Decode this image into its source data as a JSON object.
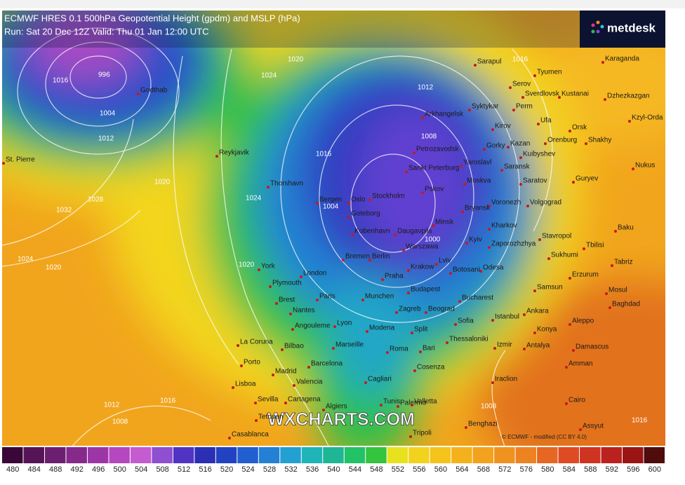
{
  "header": {
    "title": "ECMWF HRES 0.1 500hPa Geopotential Height (gpdm) and MSLP (hPa)",
    "run": "Run: Sat 20 Dec 12Z Valid: Thu 01 Jan 12:00 UTC"
  },
  "logo": "metdesk",
  "watermark": "WXCHARTS.COM",
  "credit": "© ECMWF - modified (CC BY 4.0)",
  "cities": [
    "Godthab",
    "Reykjavik",
    "St. Pierre",
    "Thorshavn",
    "Bergen",
    "Oslo",
    "Stockholm",
    "Goteborg",
    "Kobenhavn",
    "Daugavpils",
    "Petrozavodsk",
    "Arkhangelsk",
    "Sankt Peterburg",
    "Pskov",
    "Moskva",
    "Yaroslavl",
    "Kirov",
    "Perm",
    "Syktykar",
    "Serov",
    "Sarapul",
    "Tyumen",
    "Sverdlovsk",
    "Kustanai",
    "Karaganda",
    "Dzhezkazgan",
    "Kzyl-Orda",
    "Ufa",
    "Orsk",
    "Orenburg",
    "Shakhy",
    "Kazan",
    "Kuibyshev",
    "Saransk",
    "Saratov",
    "Gorky",
    "Nukus",
    "Guryev",
    "Volgograd",
    "Voronezh",
    "Bryansk",
    "Minsk",
    "Kharkov",
    "Kyiv",
    "Zaporozhzhya",
    "Stavropol",
    "Tbilisi",
    "Baku",
    "Sukhumi",
    "Tabriz",
    "Odesa",
    "Lviv",
    "Krakow",
    "Warszawa",
    "Berlin",
    "Bremen",
    "London",
    "York",
    "Plymouth",
    "Paris",
    "Brest",
    "Nantes",
    "Praha",
    "Munchen",
    "Budapest",
    "Bucharest",
    "Botosani",
    "Zagreb",
    "Beograd",
    "Sofia",
    "Istanbul",
    "Ankara",
    "Samsun",
    "Erzurum",
    "Mosul",
    "Baghdad",
    "Aleppo",
    "Konya",
    "Izmir",
    "Antalya",
    "Damascus",
    "Amman",
    "Iraclion",
    "Cairo",
    "Assyut",
    "Lyon",
    "Angouleme",
    "Modena",
    "Split",
    "Thessaloniki",
    "La Coruna",
    "Bilbao",
    "Marseille",
    "Roma",
    "Bari",
    "Porto",
    "Barcelona",
    "Cosenza",
    "Madrid",
    "Valencia",
    "Cagliari",
    "Lisboa",
    "Palermo",
    "Valletta",
    "Sevilla",
    "Cartagena",
    "Algiers",
    "Tunis",
    "Tetouan",
    "Benghazi",
    "Tripoli",
    "Casablanca"
  ],
  "isobar_labels": [
    996,
    1004,
    1012,
    1016,
    1020,
    1024,
    1020,
    1028,
    1032,
    1024,
    1020,
    1016,
    1012,
    1008,
    1004,
    1000,
    1016,
    1020,
    1024,
    1012,
    1008,
    1016,
    1008,
    1016
  ],
  "colorbar": {
    "ticks": [
      480,
      484,
      488,
      492,
      496,
      500,
      504,
      508,
      512,
      516,
      520,
      524,
      528,
      532,
      536,
      540,
      544,
      548,
      552,
      556,
      560,
      564,
      568,
      572,
      576,
      580,
      584,
      588,
      592,
      596,
      600
    ],
    "colors": [
      "#3a0838",
      "#561457",
      "#6c1f70",
      "#85298b",
      "#9c36a6",
      "#b547bf",
      "#c45ccf",
      "#8f4fd0",
      "#5234c4",
      "#2a2fb3",
      "#2342c2",
      "#215fd0",
      "#2380d4",
      "#22a0d2",
      "#1fb4b8",
      "#1fb694",
      "#22c266",
      "#34c43e",
      "#e8e21e",
      "#f2d21d",
      "#f4c31c",
      "#f3b21c",
      "#f2a21d",
      "#f0921f",
      "#ed8221",
      "#e56722",
      "#de4b22",
      "#cf3421",
      "#bb221f",
      "#9a1414",
      "#4e0c0c"
    ]
  }
}
